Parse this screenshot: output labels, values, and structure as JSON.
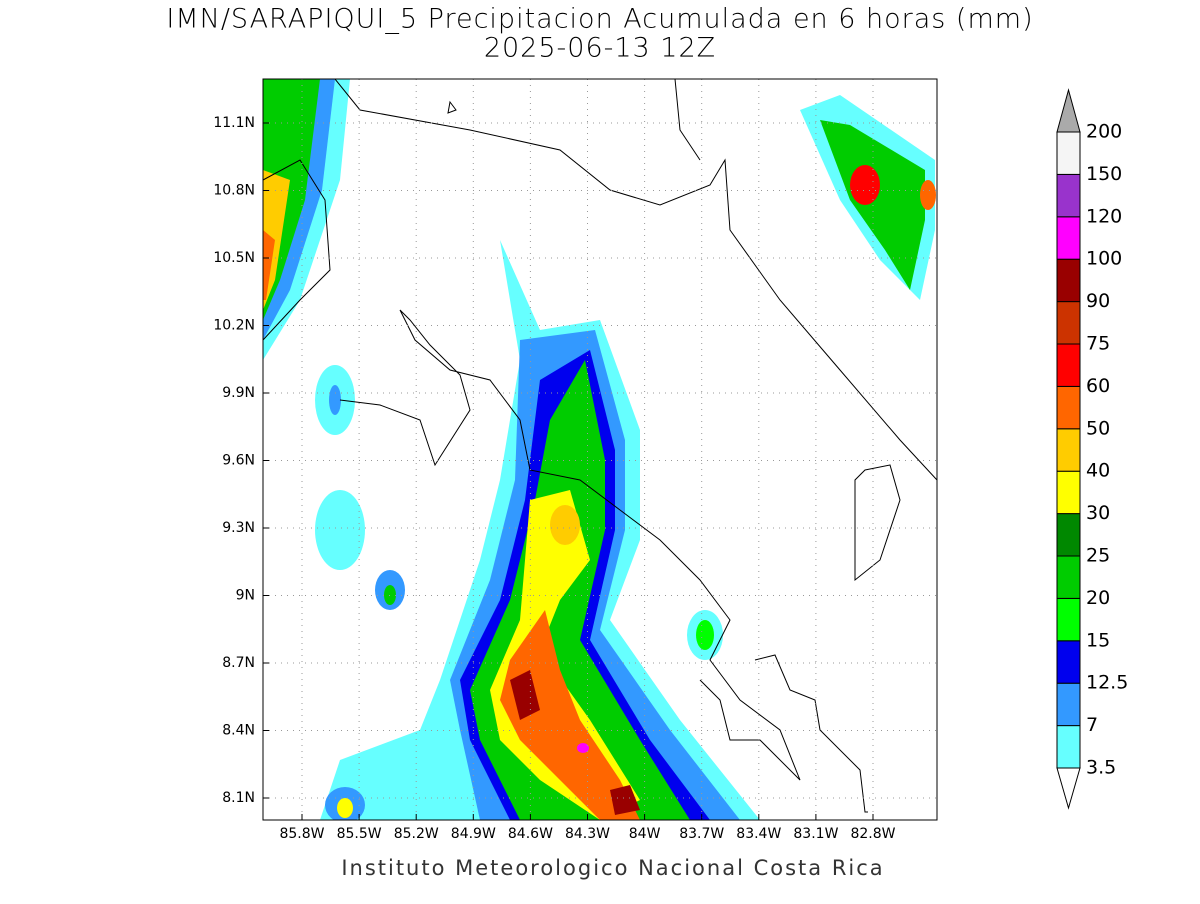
{
  "title": [
    "IMN/SARAPIQUI_5 Precipitacion Acumulada en 6 horas (mm)",
    "2025-06-13 12Z"
  ],
  "lat_ticks": [
    "11.1N",
    "10.8N",
    "10.5N",
    "10.2N",
    "9.9N",
    "9.6N",
    "9.3N",
    "9N",
    "8.7N",
    "8.4N",
    "8.1N"
  ],
  "lon_ticks": [
    "85.8W",
    "85.5W",
    "85.2W",
    "84.9W",
    "84.6W",
    "84.3W",
    "84W",
    "83.7W",
    "83.4W",
    "83.1W",
    "82.8W"
  ],
  "colorbar": {
    "levels": [
      3.5,
      7,
      12.5,
      15,
      20,
      25,
      30,
      40,
      50,
      60,
      75,
      90,
      100,
      120,
      150,
      200
    ],
    "colors": [
      "#66ffff",
      "#3399ff",
      "#0000ee",
      "#00ff00",
      "#00cc00",
      "#008800",
      "#ffff00",
      "#ffcc00",
      "#ff6600",
      "#ff0000",
      "#cc3300",
      "#990000",
      "#ff00ff",
      "#9933cc",
      "#f5f5f5"
    ],
    "under_color": "#ffffff",
    "over_color": "#aaaaaa"
  },
  "footer": "Instituto Meteorologico Nacional Costa Rica"
}
